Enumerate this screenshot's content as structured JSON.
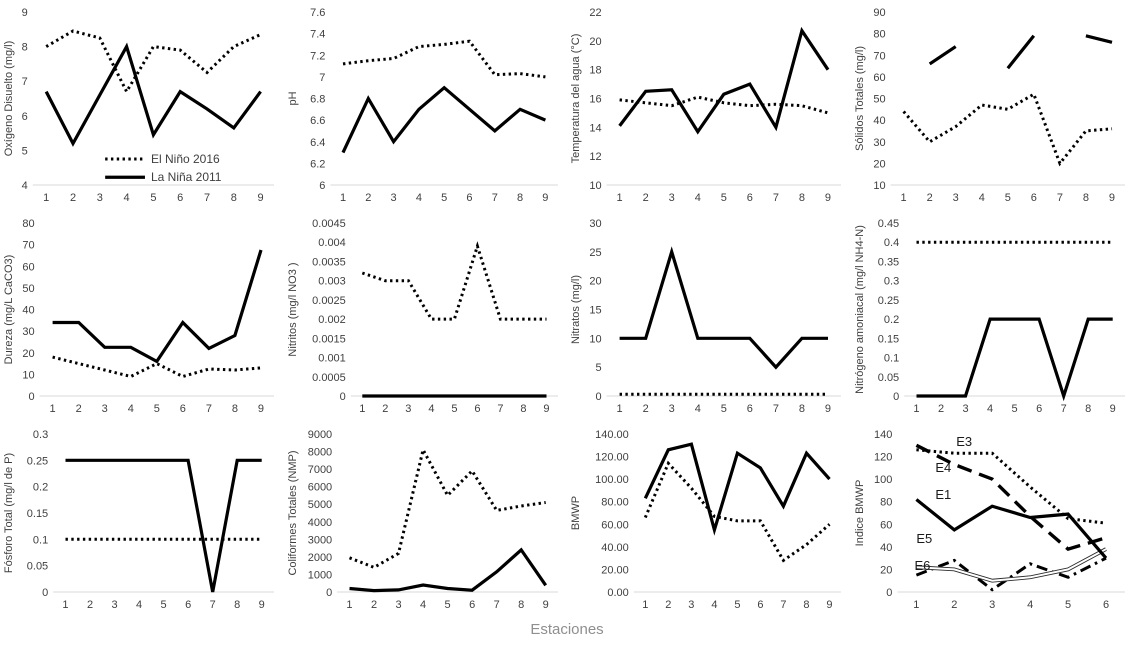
{
  "page": {
    "x_axis_title": "Estaciones"
  },
  "colors": {
    "line": "#000000",
    "axis_line": "#d9d9d9",
    "tick_text": "#3f3f3f",
    "muted_text": "#8f8f8f"
  },
  "legend": {
    "note": "legend shown only on first chart",
    "entries": [
      "El Niño 2016",
      "La Niña 2011"
    ]
  },
  "chart_data": [
    {
      "type": "line",
      "name": "oxigeno-disuelto",
      "ylabel": "Oxígeno Disuelto (mg/l)",
      "ylim": [
        4,
        9
      ],
      "yticks": [
        "4",
        "5",
        "6",
        "7",
        "8",
        "9"
      ],
      "categories": [
        "1",
        "2",
        "3",
        "4",
        "5",
        "6",
        "7",
        "8",
        "9"
      ],
      "legend": true,
      "series": [
        {
          "name": "El Niño 2016",
          "style": "dotted",
          "values": [
            8,
            8.45,
            8.25,
            6.7,
            8,
            7.9,
            7.25,
            8,
            8.35
          ]
        },
        {
          "name": "La Niña 2011",
          "style": "solid",
          "values": [
            6.7,
            5.2,
            6.6,
            8,
            5.45,
            6.7,
            6.2,
            5.65,
            6.7
          ]
        }
      ]
    },
    {
      "type": "line",
      "name": "ph",
      "ylabel": "pH",
      "ylim": [
        6,
        7.6
      ],
      "yticks": [
        "6",
        "6.2",
        "6.4",
        "6.6",
        "6.8",
        "7",
        "7.2",
        "7.4",
        "7.6"
      ],
      "categories": [
        "1",
        "2",
        "3",
        "4",
        "5",
        "6",
        "7",
        "8",
        "9"
      ],
      "series": [
        {
          "name": "El Niño 2016",
          "style": "dotted",
          "values": [
            7.12,
            7.15,
            7.17,
            7.28,
            7.3,
            7.33,
            7.02,
            7.03,
            7
          ]
        },
        {
          "name": "La Niña 2011",
          "style": "solid",
          "values": [
            6.3,
            6.8,
            6.4,
            6.7,
            6.9,
            6.7,
            6.5,
            6.7,
            6.6
          ]
        }
      ]
    },
    {
      "type": "line",
      "name": "temperatura-agua",
      "ylabel": "Temperatura del agua (°C)",
      "ylim": [
        10,
        22
      ],
      "yticks": [
        "10",
        "12",
        "14",
        "16",
        "18",
        "20",
        "22"
      ],
      "categories": [
        "1",
        "2",
        "3",
        "4",
        "5",
        "6",
        "7",
        "8",
        "9"
      ],
      "series": [
        {
          "name": "El Niño 2016",
          "style": "dotted",
          "values": [
            15.9,
            15.7,
            15.5,
            16.1,
            15.7,
            15.5,
            15.6,
            15.5,
            15
          ]
        },
        {
          "name": "La Niña 2011",
          "style": "solid",
          "values": [
            14.1,
            16.5,
            16.6,
            13.7,
            16.3,
            17,
            14,
            20.7,
            18
          ]
        }
      ]
    },
    {
      "type": "line",
      "name": "solidos-totales",
      "ylabel": "Sólidos Totales (mg/l)",
      "ylim": [
        10,
        90
      ],
      "yticks": [
        "10",
        "20",
        "30",
        "40",
        "50",
        "60",
        "70",
        "80",
        "90"
      ],
      "categories": [
        "1",
        "2",
        "3",
        "4",
        "5",
        "6",
        "7",
        "8",
        "9"
      ],
      "series": [
        {
          "name": "El Niño 2016",
          "style": "dotted",
          "values": [
            44,
            30,
            37,
            47,
            45,
            52,
            20,
            35,
            36
          ]
        },
        {
          "name": "La Niña 2011",
          "style": "solid",
          "values": [
            null,
            66,
            74,
            null,
            64,
            79,
            null,
            79,
            76
          ]
        }
      ]
    },
    {
      "type": "line",
      "name": "dureza",
      "ylabel": "Dureza (mg/L CaCO3)",
      "ylim": [
        0,
        80
      ],
      "yticks": [
        "0",
        "10",
        "20",
        "30",
        "40",
        "50",
        "60",
        "70",
        "80"
      ],
      "categories": [
        "1",
        "2",
        "3",
        "4",
        "5",
        "6",
        "7",
        "8",
        "9"
      ],
      "series": [
        {
          "name": "El Niño 2016",
          "style": "dotted",
          "values": [
            18,
            15,
            12,
            9,
            15,
            9,
            12.5,
            12,
            13
          ]
        },
        {
          "name": "La Niña 2011",
          "style": "solid",
          "values": [
            34,
            34,
            22.5,
            22.5,
            16,
            34,
            22,
            28,
            67.5
          ]
        }
      ]
    },
    {
      "type": "line",
      "name": "nitritos",
      "ylabel": "Nitritos (mg/l NO3 )",
      "ylim": [
        0,
        0.0045
      ],
      "yticks": [
        "0",
        "0.0005",
        "0.001",
        "0.0015",
        "0.002",
        "0.0025",
        "0.003",
        "0.0035",
        "0.004",
        "0.0045"
      ],
      "categories": [
        "1",
        "2",
        "3",
        "4",
        "5",
        "6",
        "7",
        "8",
        "9"
      ],
      "series": [
        {
          "name": "El Niño 2016",
          "style": "dotted",
          "values": [
            0.0032,
            0.003,
            0.003,
            0.002,
            0.002,
            0.0039,
            0.002,
            0.002,
            0.002
          ]
        },
        {
          "name": "La Niña 2011",
          "style": "solid",
          "values": [
            0,
            0,
            0,
            0,
            0,
            0,
            0,
            0,
            0
          ]
        }
      ]
    },
    {
      "type": "line",
      "name": "nitratos",
      "ylabel": "Nitratos (mg/l)",
      "ylim": [
        0,
        30
      ],
      "yticks": [
        "0",
        "5",
        "10",
        "15",
        "20",
        "25",
        "30"
      ],
      "categories": [
        "1",
        "2",
        "3",
        "4",
        "5",
        "6",
        "7",
        "8",
        "9"
      ],
      "series": [
        {
          "name": "El Niño 2016",
          "style": "dotted",
          "values": [
            0.3,
            0.3,
            0.3,
            0.3,
            0.3,
            0.3,
            0.3,
            0.3,
            0.3
          ]
        },
        {
          "name": "La Niña 2011",
          "style": "solid",
          "values": [
            10,
            10,
            25,
            10,
            10,
            10,
            5,
            10,
            10
          ]
        }
      ]
    },
    {
      "type": "line",
      "name": "nitrogeno-amoniacal",
      "ylabel": "Nitrógeno amoniacal (mg/l NH4-N)",
      "ylim": [
        0,
        0.45
      ],
      "yticks": [
        "0",
        "0.05",
        "0.1",
        "0.15",
        "0.2",
        "0.25",
        "0.3",
        "0.35",
        "0.4",
        "0.45"
      ],
      "categories": [
        "1",
        "2",
        "3",
        "4",
        "5",
        "6",
        "7",
        "8",
        "9"
      ],
      "series": [
        {
          "name": "El Niño 2016",
          "style": "dotted",
          "values": [
            0.4,
            0.4,
            0.4,
            0.4,
            0.4,
            0.4,
            0.4,
            0.4,
            0.4
          ]
        },
        {
          "name": "La Niña 2011",
          "style": "solid",
          "values": [
            0,
            0,
            0,
            0.2,
            0.2,
            0.2,
            0,
            0.2,
            0.2
          ]
        }
      ]
    },
    {
      "type": "line",
      "name": "fosforo-total",
      "ylabel": "Fósforo Total (mg/l de P)",
      "ylim": [
        0,
        0.3
      ],
      "yticks": [
        "0",
        "0.05",
        "0.1",
        "0.15",
        "0.2",
        "0.25",
        "0.3"
      ],
      "categories": [
        "1",
        "2",
        "3",
        "4",
        "5",
        "6",
        "7",
        "8",
        "9"
      ],
      "series": [
        {
          "name": "El Niño 2016",
          "style": "dotted",
          "values": [
            0.1,
            0.1,
            0.1,
            0.1,
            0.1,
            0.1,
            0.1,
            0.1,
            0.1
          ]
        },
        {
          "name": "La Niña 2011",
          "style": "solid",
          "values": [
            0.25,
            0.25,
            0.25,
            0.25,
            0.25,
            0.25,
            0,
            0.25,
            0.25
          ]
        }
      ]
    },
    {
      "type": "line",
      "name": "coliformes-totales",
      "ylabel": "Coliformes Totales (NMP)",
      "ylim": [
        0,
        9000
      ],
      "yticks": [
        "0",
        "1000",
        "2000",
        "3000",
        "4000",
        "5000",
        "6000",
        "7000",
        "8000",
        "9000"
      ],
      "categories": [
        "1",
        "2",
        "3",
        "4",
        "5",
        "6",
        "7",
        "8",
        "9"
      ],
      "series": [
        {
          "name": "El Niño 2016",
          "style": "dotted",
          "values": [
            1950,
            1400,
            2200,
            8100,
            5500,
            6900,
            4650,
            4900,
            5100
          ]
        },
        {
          "name": "La Niña 2011",
          "style": "solid",
          "values": [
            200,
            80,
            120,
            400,
            200,
            100,
            1150,
            2400,
            380
          ]
        }
      ]
    },
    {
      "type": "line",
      "name": "bmwp",
      "ylabel": "BMWP",
      "ylim": [
        0,
        140
      ],
      "yticks": [
        "0.00",
        "20.00",
        "40.00",
        "60.00",
        "80.00",
        "100.00",
        "120.00",
        "140.00"
      ],
      "categories": [
        "1",
        "2",
        "3",
        "4",
        "5",
        "6",
        "7",
        "8",
        "9"
      ],
      "series": [
        {
          "name": "El Niño 2016",
          "style": "dotted",
          "values": [
            66,
            114,
            92,
            67,
            63,
            63,
            28,
            42,
            60
          ]
        },
        {
          "name": "La Niña 2011",
          "style": "solid",
          "values": [
            83,
            126,
            131,
            55,
            123,
            110,
            76,
            123,
            100
          ]
        }
      ]
    },
    {
      "type": "line",
      "name": "indice-bmwp",
      "ylabel": "Indice BMWP",
      "ylim": [
        0,
        140
      ],
      "yticks": [
        "0",
        "20",
        "40",
        "60",
        "80",
        "100",
        "120",
        "140"
      ],
      "categories": [
        "1",
        "2",
        "3",
        "4",
        "5",
        "6"
      ],
      "series": [
        {
          "name": "E3",
          "style": "dotted",
          "values": [
            126,
            123,
            123,
            93,
            65,
            61
          ]
        },
        {
          "name": "E4",
          "style": "longdash",
          "values": [
            130,
            113,
            100,
            67,
            38,
            48
          ]
        },
        {
          "name": "E5",
          "style": "dashdot",
          "values": [
            15,
            28,
            2,
            25,
            13,
            30
          ]
        },
        {
          "name": "E6",
          "style": "double",
          "values": [
            22,
            20,
            10,
            13,
            20,
            38
          ]
        },
        {
          "name": "E1",
          "style": "solid",
          "values": [
            82,
            55,
            76,
            66,
            69,
            30
          ]
        }
      ],
      "annotations": [
        {
          "text": "E3",
          "x": 2.05,
          "y": 133
        },
        {
          "text": "E4",
          "x": 1.5,
          "y": 110
        },
        {
          "text": "E1",
          "x": 1.5,
          "y": 86
        },
        {
          "text": "E5",
          "x": 1.0,
          "y": 47
        },
        {
          "text": "E6",
          "x": 0.95,
          "y": 23
        }
      ]
    }
  ]
}
